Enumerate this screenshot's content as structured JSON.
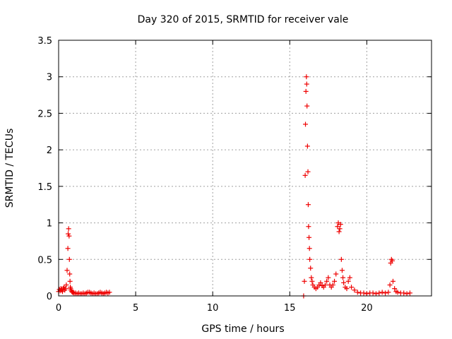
{
  "chart_data": {
    "type": "scatter",
    "title": "Day 320 of 2015, SRMTID for receiver vale",
    "xlabel": "GPS time / hours",
    "ylabel": "SRMTID / TECUs",
    "xlim": [
      0,
      24.2
    ],
    "ylim": [
      0,
      3.5
    ],
    "xticks": [
      0,
      5,
      10,
      15,
      20
    ],
    "xtick_labels": [
      "0",
      "5",
      "10",
      "15",
      "20"
    ],
    "yticks": [
      0,
      0.5,
      1,
      1.5,
      2,
      2.5,
      3,
      3.5
    ],
    "ytick_labels": [
      "0",
      "0.5",
      "1",
      "1.5",
      "2",
      "2.5",
      "3",
      "3.5"
    ],
    "grid": true,
    "marker": "+",
    "color": "#ee0000",
    "series": [
      {
        "name": "SRMTID",
        "x": [
          0.0,
          0.05,
          0.1,
          0.15,
          0.2,
          0.25,
          0.3,
          0.35,
          0.4,
          0.45,
          0.5,
          0.55,
          0.6,
          0.62,
          0.65,
          0.68,
          0.7,
          0.72,
          0.74,
          0.76,
          0.78,
          0.8,
          0.85,
          0.9,
          0.95,
          1.0,
          1.1,
          1.2,
          1.3,
          1.4,
          1.5,
          1.6,
          1.7,
          1.8,
          1.9,
          2.0,
          2.1,
          2.2,
          2.3,
          2.4,
          2.5,
          2.6,
          2.7,
          2.8,
          2.9,
          3.0,
          3.1,
          3.2,
          3.3,
          15.9,
          15.95,
          16.0,
          16.02,
          16.05,
          16.08,
          16.1,
          16.12,
          16.15,
          16.18,
          16.2,
          16.22,
          16.25,
          16.28,
          16.3,
          16.35,
          16.4,
          16.45,
          16.5,
          16.6,
          16.7,
          16.8,
          16.9,
          17.0,
          17.1,
          17.2,
          17.3,
          17.4,
          17.5,
          17.6,
          17.7,
          17.8,
          17.9,
          18.0,
          18.1,
          18.15,
          18.2,
          18.25,
          18.3,
          18.35,
          18.4,
          18.45,
          18.5,
          18.6,
          18.7,
          18.8,
          18.9,
          19.0,
          19.2,
          19.4,
          19.6,
          19.8,
          20.0,
          20.2,
          20.4,
          20.6,
          20.8,
          21.0,
          21.2,
          21.4,
          21.5,
          21.55,
          21.6,
          21.65,
          21.7,
          21.8,
          21.9,
          22.0,
          22.2,
          22.4,
          22.6,
          22.8
        ],
        "y": [
          0.06,
          0.09,
          0.07,
          0.1,
          0.08,
          0.06,
          0.1,
          0.12,
          0.08,
          0.1,
          0.15,
          0.35,
          0.65,
          0.85,
          0.92,
          0.82,
          0.5,
          0.3,
          0.2,
          0.12,
          0.1,
          0.08,
          0.06,
          0.05,
          0.05,
          0.04,
          0.04,
          0.03,
          0.04,
          0.03,
          0.03,
          0.04,
          0.03,
          0.04,
          0.05,
          0.05,
          0.04,
          0.03,
          0.04,
          0.03,
          0.03,
          0.04,
          0.05,
          0.04,
          0.03,
          0.04,
          0.05,
          0.04,
          0.05,
          0.0,
          0.2,
          1.65,
          2.35,
          2.8,
          3.0,
          2.9,
          2.6,
          2.05,
          1.7,
          1.25,
          0.95,
          0.8,
          0.65,
          0.5,
          0.38,
          0.25,
          0.2,
          0.15,
          0.12,
          0.1,
          0.12,
          0.15,
          0.18,
          0.14,
          0.12,
          0.15,
          0.2,
          0.25,
          0.15,
          0.12,
          0.15,
          0.2,
          0.3,
          0.95,
          1.0,
          0.88,
          0.92,
          0.98,
          0.5,
          0.35,
          0.25,
          0.18,
          0.12,
          0.1,
          0.2,
          0.25,
          0.12,
          0.08,
          0.05,
          0.04,
          0.04,
          0.03,
          0.04,
          0.04,
          0.03,
          0.04,
          0.05,
          0.04,
          0.05,
          0.15,
          0.45,
          0.5,
          0.48,
          0.2,
          0.1,
          0.06,
          0.05,
          0.04,
          0.04,
          0.03,
          0.04
        ]
      }
    ]
  }
}
